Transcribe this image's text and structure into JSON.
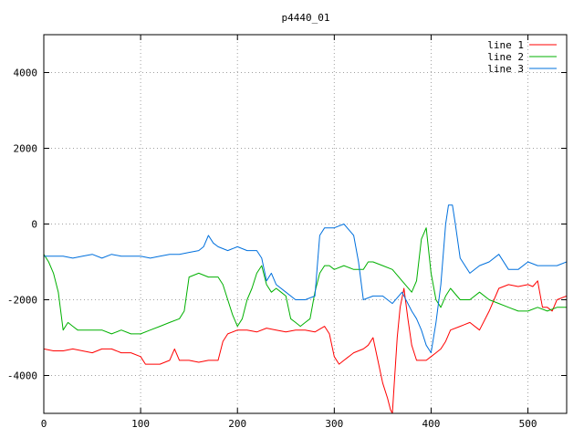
{
  "chart_data": {
    "type": "line",
    "title": "p4440_01",
    "xlabel": "",
    "ylabel": "",
    "xlim": [
      0,
      540
    ],
    "ylim": [
      -5000,
      5000
    ],
    "xticks": [
      0,
      100,
      200,
      300,
      400,
      500
    ],
    "yticks": [
      -4000,
      -2000,
      0,
      2000,
      4000
    ],
    "grid": true,
    "legend_position": "top-right",
    "series": [
      {
        "name": "line 1",
        "color": "#ff0000",
        "x": [
          0,
          10,
          20,
          30,
          40,
          50,
          60,
          70,
          80,
          90,
          100,
          105,
          110,
          120,
          130,
          135,
          140,
          150,
          160,
          170,
          180,
          185,
          190,
          200,
          210,
          220,
          230,
          240,
          250,
          260,
          270,
          280,
          290,
          295,
          300,
          305,
          310,
          320,
          330,
          335,
          340,
          345,
          350,
          355,
          358,
          360,
          362,
          365,
          368,
          372,
          376,
          380,
          385,
          390,
          395,
          400,
          405,
          410,
          415,
          420,
          430,
          440,
          450,
          460,
          470,
          480,
          490,
          500,
          505,
          510,
          515,
          520,
          525,
          530,
          540
        ],
        "y": [
          -3300,
          -3350,
          -3350,
          -3300,
          -3350,
          -3400,
          -3300,
          -3300,
          -3400,
          -3400,
          -3500,
          -3700,
          -3700,
          -3700,
          -3600,
          -3300,
          -3600,
          -3600,
          -3650,
          -3600,
          -3600,
          -3100,
          -2900,
          -2800,
          -2800,
          -2850,
          -2750,
          -2800,
          -2850,
          -2800,
          -2800,
          -2850,
          -2700,
          -2900,
          -3500,
          -3700,
          -3600,
          -3400,
          -3300,
          -3200,
          -3000,
          -3600,
          -4200,
          -4600,
          -4900,
          -5000,
          -4200,
          -3000,
          -2200,
          -1700,
          -2500,
          -3200,
          -3600,
          -3600,
          -3600,
          -3500,
          -3400,
          -3300,
          -3100,
          -2800,
          -2700,
          -2600,
          -2800,
          -2300,
          -1700,
          -1600,
          -1650,
          -1600,
          -1650,
          -1500,
          -2200,
          -2200,
          -2300,
          -2000,
          -1900
        ]
      },
      {
        "name": "line 2",
        "color": "#00b000",
        "x": [
          0,
          5,
          10,
          15,
          20,
          25,
          30,
          35,
          40,
          50,
          60,
          70,
          80,
          90,
          100,
          110,
          120,
          130,
          140,
          145,
          150,
          160,
          170,
          180,
          185,
          190,
          195,
          200,
          205,
          210,
          215,
          220,
          225,
          230,
          235,
          240,
          245,
          250,
          255,
          260,
          265,
          270,
          275,
          280,
          285,
          290,
          295,
          300,
          310,
          320,
          330,
          335,
          340,
          350,
          360,
          370,
          380,
          385,
          390,
          395,
          400,
          405,
          410,
          415,
          420,
          430,
          440,
          450,
          460,
          470,
          480,
          490,
          500,
          510,
          520,
          530,
          540
        ],
        "y": [
          -800,
          -1000,
          -1300,
          -1800,
          -2800,
          -2600,
          -2700,
          -2800,
          -2800,
          -2800,
          -2800,
          -2900,
          -2800,
          -2900,
          -2900,
          -2800,
          -2700,
          -2600,
          -2500,
          -2300,
          -1400,
          -1300,
          -1400,
          -1400,
          -1600,
          -2000,
          -2400,
          -2700,
          -2500,
          -2000,
          -1700,
          -1300,
          -1100,
          -1600,
          -1800,
          -1700,
          -1800,
          -1900,
          -2500,
          -2600,
          -2700,
          -2600,
          -2500,
          -1800,
          -1300,
          -1100,
          -1100,
          -1200,
          -1100,
          -1200,
          -1200,
          -1000,
          -1000,
          -1100,
          -1200,
          -1500,
          -1800,
          -1500,
          -400,
          -100,
          -1300,
          -2000,
          -2200,
          -1900,
          -1700,
          -2000,
          -2000,
          -1800,
          -2000,
          -2100,
          -2200,
          -2300,
          -2300,
          -2200,
          -2300,
          -2200,
          -2200
        ]
      },
      {
        "name": "line 3",
        "color": "#0070dd",
        "x": [
          0,
          10,
          20,
          30,
          40,
          50,
          60,
          70,
          80,
          90,
          100,
          110,
          120,
          130,
          140,
          150,
          160,
          165,
          170,
          175,
          180,
          190,
          200,
          210,
          220,
          225,
          230,
          235,
          240,
          250,
          260,
          270,
          280,
          285,
          290,
          295,
          300,
          310,
          320,
          325,
          330,
          340,
          350,
          360,
          370,
          380,
          385,
          390,
          395,
          400,
          405,
          410,
          415,
          418,
          422,
          425,
          430,
          440,
          450,
          460,
          470,
          480,
          490,
          500,
          510,
          520,
          530,
          540
        ],
        "y": [
          -850,
          -850,
          -850,
          -900,
          -850,
          -800,
          -900,
          -800,
          -850,
          -850,
          -850,
          -900,
          -850,
          -800,
          -800,
          -750,
          -700,
          -600,
          -300,
          -500,
          -600,
          -700,
          -600,
          -700,
          -700,
          -900,
          -1500,
          -1300,
          -1600,
          -1800,
          -2000,
          -2000,
          -1900,
          -300,
          -100,
          -100,
          -100,
          0,
          -300,
          -1000,
          -2000,
          -1900,
          -1900,
          -2100,
          -1800,
          -2300,
          -2500,
          -2800,
          -3200,
          -3400,
          -2600,
          -1600,
          0,
          500,
          500,
          0,
          -900,
          -1300,
          -1100,
          -1000,
          -800,
          -1200,
          -1200,
          -1000,
          -1100,
          -1100,
          -1100,
          -1000
        ]
      }
    ]
  }
}
